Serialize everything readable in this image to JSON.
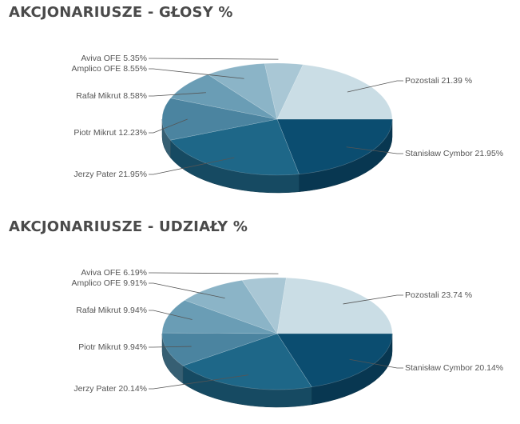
{
  "chart_data": [
    {
      "type": "pie",
      "title": "AKCJONARIUSZE - GŁOSY %",
      "slices": [
        {
          "name": "Stanisław Cymbor",
          "value": 21.95,
          "label": "Stanisław Cymbor 21.95%",
          "color": "#0b4d70"
        },
        {
          "name": "Jerzy Pater",
          "value": 21.95,
          "label": "Jerzy Pater 21.95%",
          "color": "#1e6788"
        },
        {
          "name": "Piotr Mikrut",
          "value": 12.23,
          "label": "Piotr Mikrut 12.23%",
          "color": "#4b84a0"
        },
        {
          "name": "Rafał Mikrut",
          "value": 8.58,
          "label": "Rafał Mikrut 8.58%",
          "color": "#6a9db5"
        },
        {
          "name": "Amplico OFE",
          "value": 8.55,
          "label": "Amplico OFE 8.55%",
          "color": "#8bb4c7"
        },
        {
          "name": "Aviva OFE",
          "value": 5.35,
          "label": "Aviva OFE 5.35%",
          "color": "#a9c7d5"
        },
        {
          "name": "Pozostali",
          "value": 21.39,
          "label": "Pozostali 21.39 %",
          "color": "#cadde5"
        }
      ]
    },
    {
      "type": "pie",
      "title": "AKCJONARIUSZE - UDZIAŁY %",
      "slices": [
        {
          "name": "Stanisław Cymbor",
          "value": 20.14,
          "label": "Stanisław Cymbor 20.14%",
          "color": "#0b4d70"
        },
        {
          "name": "Jerzy Pater",
          "value": 20.14,
          "label": "Jerzy Pater 20.14%",
          "color": "#1e6788"
        },
        {
          "name": "Piotr Mikrut",
          "value": 9.94,
          "label": "Piotr Mikrut 9.94%",
          "color": "#4b84a0"
        },
        {
          "name": "Rafał Mikrut",
          "value": 9.94,
          "label": "Rafał Mikrut 9.94%",
          "color": "#6a9db5"
        },
        {
          "name": "Amplico OFE",
          "value": 9.91,
          "label": "Amplico OFE 9.91%",
          "color": "#8bb4c7"
        },
        {
          "name": "Aviva OFE",
          "value": 6.19,
          "label": "Aviva OFE 6.19%",
          "color": "#a9c7d5"
        },
        {
          "name": "Pozostali",
          "value": 23.74,
          "label": "Pozostali 23.74 %",
          "color": "#cadde5"
        }
      ]
    }
  ]
}
